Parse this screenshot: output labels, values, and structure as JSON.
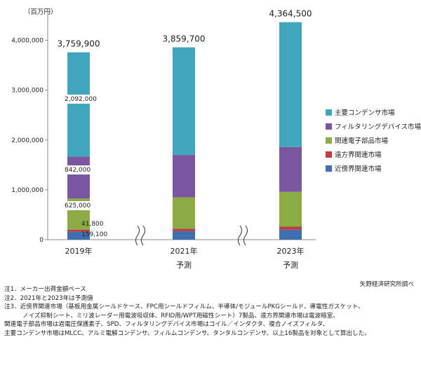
{
  "chart_data": {
    "type": "bar",
    "stacked": true,
    "unit_label": "（百万円）",
    "categories": [
      "2019年",
      "2021年",
      "2023年"
    ],
    "category_sublabels": [
      "",
      "予測",
      "予測"
    ],
    "ylim": [
      0,
      4500000
    ],
    "yticks": [
      0,
      1000000,
      2000000,
      3000000,
      4000000
    ],
    "ytick_labels": [
      "0",
      "1,000,000",
      "2,000,000",
      "3,000,000",
      "4,000,000"
    ],
    "totals": [
      3759900,
      3859700,
      4364500
    ],
    "total_labels": [
      "3,759,900",
      "3,859,700",
      "4,364,500"
    ],
    "series": [
      {
        "name": "近傍界関連市場",
        "color": "#3f6fb0",
        "values": [
          159100,
          170000,
          200000
        ]
      },
      {
        "name": "遠方界関連市場",
        "color": "#c23b3b",
        "values": [
          41800,
          50000,
          60000
        ]
      },
      {
        "name": "関連電子部品市場",
        "color": "#8bab44",
        "values": [
          625000,
          630000,
          700000
        ]
      },
      {
        "name": "フィルタリングデバイス市場",
        "color": "#7a55a0",
        "values": [
          842000,
          850000,
          900000
        ]
      },
      {
        "name": "主要コンデンサ市場",
        "color": "#3fa6be",
        "values": [
          2092000,
          2159700,
          2504500
        ]
      }
    ],
    "data_labels": [
      {
        "series": 4,
        "category": 0,
        "text": "2,092,000"
      },
      {
        "series": 3,
        "category": 0,
        "text": "842,000"
      },
      {
        "series": 2,
        "category": 0,
        "text": "625,000"
      },
      {
        "series": 1,
        "category": 0,
        "text": "41,800"
      },
      {
        "series": 0,
        "category": 0,
        "text": "159,100"
      }
    ],
    "legend_position": "right"
  },
  "source": "矢野経済研究所調べ",
  "notes": [
    "注1．メーカー出荷金額ベース",
    "注2．2021年と2023年は予測値",
    "注3．近傍界関連市場（基板用金属シールドケース、FPC用シールドフィルム、半導体/モジュールPKGシールド、導電性ガスケット、",
    "ノイズ抑制シート、ミリ波レーダー用電波吸収体、RFID用/WPT用磁性シート）7製品、遠方界関連市場は電波暗室、",
    "関連電子部品市場は過電圧保護素子、SPD、フィルタリングデバイス市場はコイル／インダクタ、複合ノイズフィルタ、",
    "主要コンデンサ市場はMLCC、アルミ電解コンデンサ、フィルムコンデンサ、タンタルコンデンサ、以上16製品を対象として算出した。"
  ]
}
